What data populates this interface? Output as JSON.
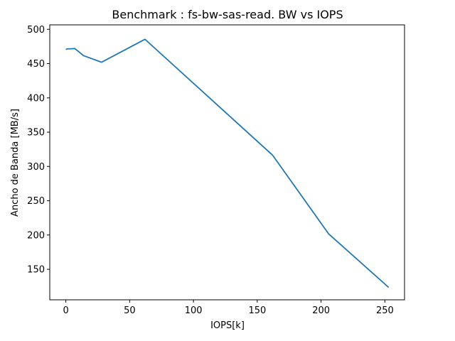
{
  "chart_data": {
    "type": "line",
    "title": "Benchmark : fs-bw-sas-read. BW vs IOPS",
    "xlabel": "IOPS[k]",
    "ylabel": "Ancho de Banda [MB/s]",
    "xlim": [
      -12.6,
      265.4
    ],
    "ylim": [
      105.5,
      506.5
    ],
    "xticks": [
      0,
      50,
      100,
      150,
      200,
      250
    ],
    "yticks": [
      150,
      200,
      250,
      300,
      350,
      400,
      450,
      500
    ],
    "grid": false,
    "series": [
      {
        "color": "#1f77b4",
        "x": [
          0.0,
          1.0,
          3.5,
          7.0,
          14.0,
          28.0,
          62.0,
          162.0,
          206.0,
          253.0
        ],
        "y": [
          470.5,
          471.5,
          471.5,
          472.0,
          461.5,
          452.0,
          485.5,
          316.5,
          201.5,
          123.5
        ]
      }
    ]
  }
}
